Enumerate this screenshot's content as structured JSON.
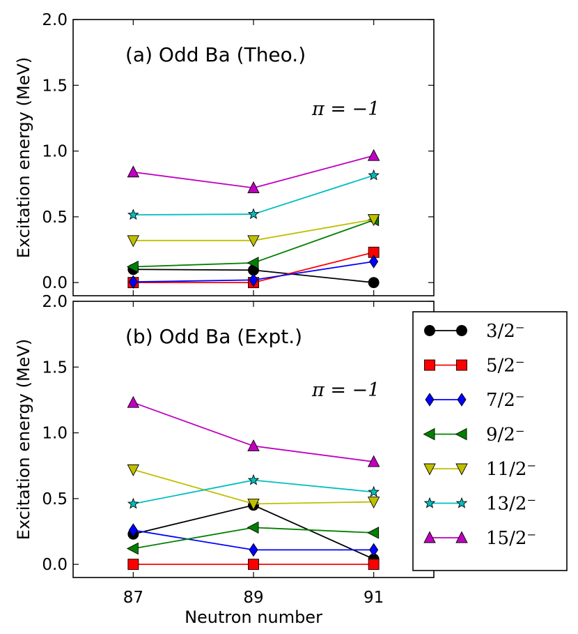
{
  "chart_data": {
    "type": "line",
    "x": [
      87,
      89,
      91
    ],
    "xlabel": "Neutron number",
    "xticks": [
      "87",
      "89",
      "91"
    ],
    "xlim": [
      86,
      92
    ],
    "legend_placement": "lower-right",
    "panels": [
      {
        "title": "(a) Odd Ba (Theo.)",
        "annotation": "π = −1",
        "ylabel": "Excitation energy (MeV)",
        "ylim": [
          -0.1,
          2.0
        ],
        "yticks": [
          "0.0",
          "0.5",
          "1.0",
          "1.5",
          "2.0"
        ],
        "series": [
          {
            "name": "3/2⁻",
            "color": "#000000",
            "marker": "circle",
            "values": [
              0.1,
              0.095,
              0.0
            ]
          },
          {
            "name": "5/2⁻",
            "color": "#ff0000",
            "marker": "square",
            "values": [
              0.0,
              0.0,
              0.23
            ]
          },
          {
            "name": "7/2⁻",
            "color": "#0000ff",
            "marker": "diamond",
            "values": [
              0.005,
              0.02,
              0.16
            ]
          },
          {
            "name": "9/2⁻",
            "color": "#008000",
            "marker": "triangle-left",
            "values": [
              0.12,
              0.15,
              0.475
            ]
          },
          {
            "name": "11/2⁻",
            "color": "#bfbf00",
            "marker": "triangle-down",
            "values": [
              0.32,
              0.32,
              0.48
            ]
          },
          {
            "name": "13/2⁻",
            "color": "#00bfbf",
            "marker": "star",
            "values": [
              0.515,
              0.52,
              0.815
            ]
          },
          {
            "name": "15/2⁻",
            "color": "#bf00bf",
            "marker": "triangle-up",
            "values": [
              0.84,
              0.72,
              0.965
            ]
          }
        ]
      },
      {
        "title": "(b) Odd Ba (Expt.)",
        "annotation": "π = −1",
        "ylabel": "Excitation energy (MeV)",
        "ylim": [
          -0.1,
          2.0
        ],
        "yticks": [
          "0.0",
          "0.5",
          "1.0",
          "1.5",
          "2.0"
        ],
        "series": [
          {
            "name": "3/2⁻",
            "color": "#000000",
            "marker": "circle",
            "values": [
              0.23,
              0.45,
              0.04
            ]
          },
          {
            "name": "5/2⁻",
            "color": "#ff0000",
            "marker": "square",
            "values": [
              0.0,
              0.0,
              0.0
            ]
          },
          {
            "name": "7/2⁻",
            "color": "#0000ff",
            "marker": "diamond",
            "values": [
              0.26,
              0.11,
              0.11
            ]
          },
          {
            "name": "9/2⁻",
            "color": "#008000",
            "marker": "triangle-left",
            "values": [
              0.12,
              0.28,
              0.24
            ]
          },
          {
            "name": "11/2⁻",
            "color": "#bfbf00",
            "marker": "triangle-down",
            "values": [
              0.72,
              0.46,
              0.475
            ]
          },
          {
            "name": "13/2⁻",
            "color": "#00bfbf",
            "marker": "star",
            "values": [
              0.46,
              0.64,
              0.55
            ]
          },
          {
            "name": "15/2⁻",
            "color": "#bf00bf",
            "marker": "triangle-up",
            "values": [
              1.23,
              0.9,
              0.78
            ]
          }
        ]
      }
    ],
    "legend": [
      "3/2⁻",
      "5/2⁻",
      "7/2⁻",
      "9/2⁻",
      "11/2⁻",
      "13/2⁻",
      "15/2⁻"
    ]
  }
}
